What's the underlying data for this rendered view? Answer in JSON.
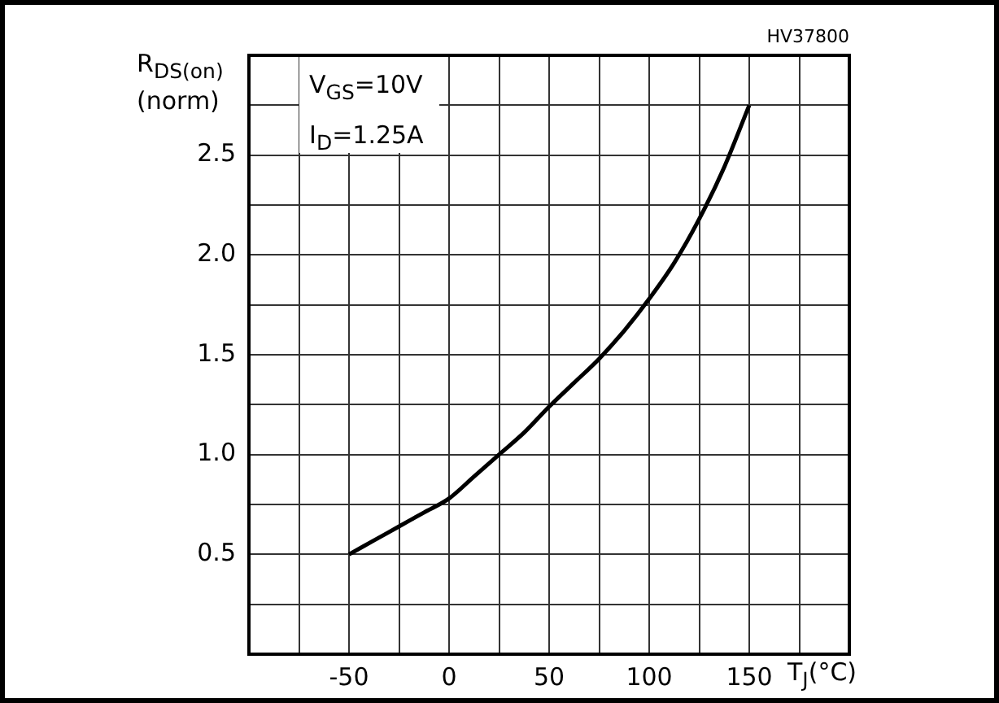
{
  "chart_data": {
    "type": "line",
    "xlabel": "T$_{J}$(°C)",
    "ylabel": "R$_{DS(on)}$ (norm)",
    "annotations": [
      "V$_{GS}$=10V",
      "I$_{D}$=1.25A",
      "HV37800"
    ],
    "x": [
      -50,
      -37.5,
      -25,
      -12.5,
      0,
      12.5,
      25,
      37.5,
      50,
      62.5,
      75,
      87.5,
      100,
      112.5,
      125,
      137.5,
      150
    ],
    "series": [
      {
        "color": "#000000",
        "values": [
          0.5,
          0.57,
          0.64,
          0.71,
          0.78,
          0.89,
          1.0,
          1.11,
          1.24,
          1.36,
          1.48,
          1.62,
          1.78,
          1.96,
          2.18,
          2.44,
          2.75
        ]
      }
    ],
    "xlim": [
      -100,
      200
    ],
    "xticks": [
      {
        "value": -75,
        "label": null
      },
      -50,
      {
        "value": -25,
        "label": null
      },
      0,
      {
        "value": 25,
        "label": null
      },
      50,
      {
        "value": 75,
        "label": null
      },
      100,
      {
        "value": 125,
        "label": null
      },
      150,
      {
        "value": 175,
        "label": null
      }
    ],
    "ylim": [
      0,
      3
    ],
    "yticks": [
      {
        "value": 0.25,
        "label": null
      },
      {
        "value": 0.5,
        "label": "0.5"
      },
      {
        "value": 0.75,
        "label": null
      },
      {
        "value": 1,
        "label": "1.0"
      },
      {
        "value": 1.25,
        "label": null
      },
      {
        "value": 1.5,
        "label": "1.5"
      },
      {
        "value": 1.75,
        "label": null
      },
      {
        "value": 2,
        "label": "2.0"
      },
      {
        "value": 2.25,
        "label": null
      },
      {
        "value": 2.5,
        "label": "2.5"
      },
      {
        "value": 2.75,
        "label": null
      }
    ],
    "grid": true,
    "legend": false,
    "marker": "none",
    "line_style": "solid"
  }
}
